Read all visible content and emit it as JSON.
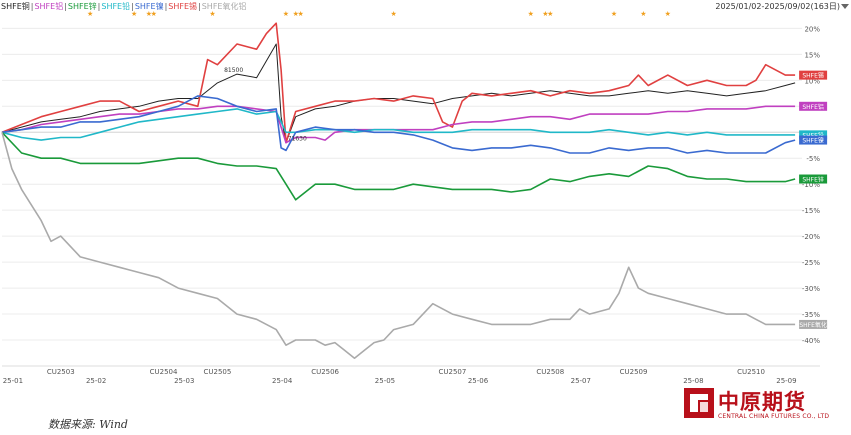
{
  "header": {
    "legend": [
      {
        "label": "SHFE铜",
        "color": "#222222"
      },
      {
        "label": "SHFE铝",
        "color": "#c040c0"
      },
      {
        "label": "SHFE锌",
        "color": "#1a9a3a"
      },
      {
        "label": "SHFE铅",
        "color": "#20b8c8"
      },
      {
        "label": "SHFE镍",
        "color": "#3a6ad0"
      },
      {
        "label": "SHFE锡",
        "color": "#e04040"
      },
      {
        "label": "SHFE氧化铝",
        "color": "#aaaaaa"
      }
    ],
    "date_range": "2025/01/02-2025/09/02(163日)"
  },
  "footer": {
    "source": "数据来源: Wind",
    "logo_cn": "中原期货",
    "logo_en": "CENTRAL CHINA FUTURES CO., LTD"
  },
  "chart_data": {
    "type": "line",
    "ylim": [
      -45,
      22
    ],
    "y_ticks": [
      20,
      15,
      10,
      5,
      0,
      -5,
      -10,
      -15,
      -20,
      -25,
      -30,
      -35,
      -40
    ],
    "y_tick_labels": [
      "20%",
      "15%",
      "10%",
      "5%",
      "0%",
      "-5%",
      "-10%",
      "-15%",
      "-20%",
      "-25%",
      "-30%",
      "-35%",
      "-40%"
    ],
    "contract_labels": [
      {
        "label": "CU2503",
        "x": 12
      },
      {
        "label": "CU2504",
        "x": 33
      },
      {
        "label": "CU2505",
        "x": 44
      },
      {
        "label": "CU2506",
        "x": 66
      },
      {
        "label": "CU2507",
        "x": 92
      },
      {
        "label": "CU2508",
        "x": 112
      },
      {
        "label": "CU2509",
        "x": 129
      },
      {
        "label": "CU2510",
        "x": 153
      }
    ],
    "date_labels": [
      {
        "label": "25-01",
        "x": 1
      },
      {
        "label": "25-02",
        "x": 18
      },
      {
        "label": "25-03",
        "x": 36
      },
      {
        "label": "25-04",
        "x": 56
      },
      {
        "label": "25-05",
        "x": 77
      },
      {
        "label": "25-06",
        "x": 96
      },
      {
        "label": "25-07",
        "x": 117
      },
      {
        "label": "25-08",
        "x": 140
      },
      {
        "label": "25-09",
        "x": 159
      }
    ],
    "star_markers": [
      18,
      27,
      30,
      31,
      43,
      58,
      60,
      61,
      80,
      108,
      111,
      112,
      125,
      131,
      136
    ],
    "annotations": [
      {
        "text": "81500",
        "series": "SHFE铜",
        "x": 47,
        "y": 11.2
      },
      {
        "text": "71630",
        "series": "SHFE铜",
        "x": 60,
        "y": -2.0
      }
    ],
    "series": [
      {
        "name": "SHFE铜",
        "color": "#222222",
        "end_label": "",
        "x": [
          0,
          4,
          8,
          12,
          16,
          20,
          24,
          28,
          32,
          36,
          40,
          44,
          48,
          52,
          56,
          57,
          58,
          60,
          64,
          68,
          72,
          76,
          80,
          84,
          88,
          92,
          96,
          100,
          104,
          108,
          112,
          116,
          120,
          124,
          128,
          132,
          136,
          140,
          144,
          148,
          152,
          156,
          160,
          162
        ],
        "values": [
          0,
          1,
          2,
          2.5,
          3,
          4,
          4.5,
          5,
          6,
          6.5,
          6.5,
          9.5,
          11.2,
          10.5,
          17,
          3,
          -2,
          3,
          4.5,
          5,
          6,
          6.5,
          6.5,
          6,
          5.5,
          6.5,
          7,
          7.5,
          7,
          7.5,
          8,
          7.5,
          7,
          7,
          7.5,
          8,
          7.5,
          8,
          7.5,
          7,
          7.5,
          8,
          9,
          9.5
        ]
      },
      {
        "name": "SHFE锡",
        "color": "#e04040",
        "end_label": "SHFE锡",
        "x": [
          0,
          4,
          8,
          12,
          16,
          20,
          24,
          28,
          32,
          36,
          40,
          42,
          44,
          48,
          52,
          54,
          56,
          57,
          58,
          60,
          64,
          68,
          72,
          76,
          80,
          84,
          88,
          90,
          92,
          94,
          96,
          100,
          104,
          108,
          112,
          116,
          120,
          124,
          128,
          130,
          132,
          136,
          140,
          144,
          148,
          152,
          154,
          156,
          160,
          162
        ],
        "values": [
          0,
          1.5,
          3,
          4,
          5,
          6,
          6,
          4,
          5,
          6,
          5,
          14,
          13,
          17,
          16,
          19,
          21,
          12,
          -2,
          4,
          5,
          6,
          6,
          6.5,
          6,
          7,
          6.5,
          2,
          1,
          6,
          7.5,
          7,
          7.5,
          8,
          7,
          8,
          7.5,
          8,
          9,
          11,
          9,
          11,
          9,
          10,
          9,
          9,
          10,
          13,
          11,
          11
        ]
      },
      {
        "name": "SHFE铝",
        "color": "#c040c0",
        "end_label": "SHFE铝",
        "x": [
          0,
          4,
          8,
          12,
          16,
          20,
          24,
          28,
          32,
          36,
          40,
          44,
          48,
          52,
          56,
          58,
          60,
          64,
          66,
          68,
          72,
          76,
          80,
          84,
          88,
          92,
          96,
          100,
          104,
          108,
          112,
          116,
          120,
          124,
          128,
          132,
          136,
          140,
          144,
          148,
          152,
          156,
          160,
          162
        ],
        "values": [
          0,
          0.5,
          1.5,
          2,
          2.5,
          3,
          3.5,
          3.5,
          4,
          4.5,
          4.5,
          5,
          5,
          4.5,
          4,
          -2,
          -1,
          -1,
          -1.5,
          0,
          0.5,
          0.5,
          0.5,
          0.5,
          0.5,
          1.5,
          2,
          2,
          2.5,
          3,
          3,
          2.5,
          3.5,
          3.5,
          3.5,
          3.5,
          4,
          4,
          4.5,
          4.5,
          4.5,
          5,
          5,
          5
        ]
      },
      {
        "name": "SHFE铅",
        "color": "#20b8c8",
        "end_label": "SHFE铅",
        "x": [
          0,
          4,
          8,
          12,
          16,
          20,
          24,
          28,
          32,
          36,
          40,
          44,
          48,
          52,
          56,
          58,
          60,
          64,
          68,
          72,
          76,
          80,
          84,
          88,
          92,
          96,
          100,
          104,
          108,
          112,
          116,
          120,
          124,
          128,
          132,
          136,
          140,
          144,
          148,
          152,
          156,
          160,
          162
        ],
        "values": [
          0,
          -1,
          -1.5,
          -1,
          -1,
          0,
          1,
          2,
          2.5,
          3,
          3.5,
          4,
          4.5,
          3.5,
          4,
          0,
          0,
          0.5,
          0.5,
          0,
          0.5,
          0.5,
          0,
          0,
          0,
          0.5,
          0.5,
          0.5,
          0.5,
          0,
          0,
          0,
          0.5,
          0,
          -0.5,
          0,
          -0.5,
          0,
          -0.5,
          -0.5,
          -0.5,
          -0.5,
          -0.5
        ]
      },
      {
        "name": "SHFE镍",
        "color": "#3a6ad0",
        "end_label": "SHFE镍",
        "x": [
          0,
          4,
          8,
          12,
          16,
          20,
          24,
          28,
          32,
          36,
          40,
          44,
          48,
          52,
          56,
          57,
          58,
          60,
          64,
          68,
          72,
          76,
          80,
          84,
          88,
          92,
          96,
          100,
          104,
          108,
          112,
          116,
          120,
          124,
          128,
          132,
          136,
          140,
          144,
          148,
          152,
          156,
          160,
          162
        ],
        "values": [
          0,
          0.5,
          1,
          1,
          2,
          2,
          2.5,
          3,
          4,
          5,
          7,
          6.5,
          5,
          4,
          4.5,
          -3,
          -3.5,
          0,
          1,
          0.5,
          0.5,
          0,
          0,
          -0.5,
          -1.5,
          -3,
          -3.5,
          -3,
          -3,
          -2.5,
          -3,
          -4,
          -4,
          -3,
          -3.5,
          -3,
          -3,
          -4,
          -3.5,
          -4,
          -4,
          -4,
          -2,
          -1.5
        ]
      },
      {
        "name": "SHFE锌",
        "color": "#1a9a3a",
        "end_label": "SHFE锌",
        "x": [
          0,
          4,
          8,
          12,
          16,
          20,
          24,
          28,
          32,
          36,
          40,
          44,
          48,
          52,
          56,
          58,
          60,
          64,
          68,
          72,
          76,
          80,
          84,
          88,
          92,
          96,
          100,
          104,
          108,
          112,
          116,
          120,
          124,
          128,
          132,
          136,
          140,
          144,
          148,
          152,
          156,
          160,
          162
        ],
        "values": [
          0,
          -4,
          -5,
          -5,
          -6,
          -6,
          -6,
          -6,
          -5.5,
          -5,
          -5,
          -6,
          -6.5,
          -6.5,
          -7,
          -10,
          -13,
          -10,
          -10,
          -11,
          -11,
          -11,
          -10,
          -10.5,
          -11,
          -11,
          -11,
          -11.5,
          -11,
          -9,
          -9.5,
          -8.5,
          -8,
          -8.5,
          -6.5,
          -7,
          -8.5,
          -9,
          -9,
          -9.5,
          -9.5,
          -9.5,
          -9
        ]
      },
      {
        "name": "SHFE氧化铝",
        "color": "#aaaaaa",
        "end_label": "SHFE氧化",
        "x": [
          0,
          2,
          4,
          8,
          10,
          12,
          16,
          20,
          24,
          28,
          32,
          36,
          40,
          44,
          48,
          52,
          56,
          58,
          60,
          64,
          66,
          68,
          70,
          72,
          74,
          76,
          78,
          80,
          84,
          88,
          92,
          96,
          100,
          104,
          108,
          112,
          116,
          118,
          120,
          124,
          126,
          128,
          130,
          132,
          136,
          140,
          144,
          148,
          152,
          154,
          156,
          160,
          162
        ],
        "values": [
          0,
          -7,
          -11,
          -17,
          -21,
          -20,
          -24,
          -25,
          -26,
          -27,
          -28,
          -30,
          -31,
          -32,
          -35,
          -36,
          -38,
          -41,
          -40,
          -40,
          -41,
          -40.5,
          -42,
          -43.5,
          -42,
          -40.5,
          -40,
          -38,
          -37,
          -33,
          -35,
          -36,
          -37,
          -37,
          -37,
          -36,
          -36,
          -34,
          -35,
          -34,
          -31,
          -26,
          -30,
          -31,
          -32,
          -33,
          -34,
          -35,
          -35,
          -36,
          -37,
          -37,
          -37
        ]
      }
    ]
  }
}
